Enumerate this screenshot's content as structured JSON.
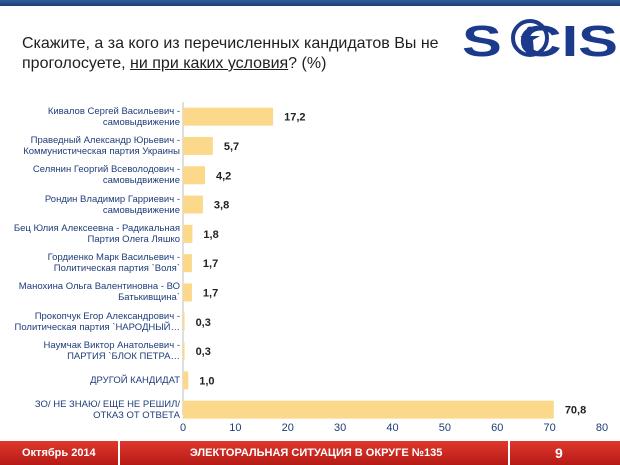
{
  "header": {
    "title_part1": "Скажите, а за кого из перечисленных кандидатов Вы не проголосуете, ",
    "title_emphasis": "ни при каких условия",
    "title_part2": "? (%)",
    "logo_text": "S CIS"
  },
  "chart_data": {
    "type": "bar",
    "orientation": "horizontal",
    "title": "Скажите, а за кого из перечисленных кандидатов Вы не проголосуете, ни при каких условия? (%)",
    "categories": [
      "Кивалов Сергей Васильевич -\nсамовыдвижение",
      "Праведный Александр Юрьевич -\nКоммунистическая партия Украины",
      "Селянин Георгий Всеволодович -\nсамовыдвижение",
      "Рондин Владимир Гарриевич -\nсамовыдвижение",
      "Бец Юлия Алексеевна - Радикальная\nПартия Олега Ляшко",
      "Гордиенко Марк Васильевич -\nПолитическая партия `Воля`",
      "Манохина Ольга Валентиновна - ВО\nБатькивщина`",
      "Прокопчук Егор Александрович -\nПолитическая партия `НАРОДНЫЙ…",
      "Наумчак Виктор Анатольевич -\nПАРТИЯ `БЛОК ПЕТРА…",
      "ДРУГОЙ КАНДИДАТ",
      "ЗО/ НЕ ЗНАЮ/ ЕЩЕ НЕ РЕШИЛ/\nОТКАЗ ОТ ОТВЕТА"
    ],
    "values": [
      17.2,
      5.7,
      4.2,
      3.8,
      1.8,
      1.7,
      1.7,
      0.3,
      0.3,
      1.0,
      70.8
    ],
    "value_labels": [
      "17,2",
      "5,7",
      "4,2",
      "3,8",
      "1,8",
      "1,7",
      "1,7",
      "0,3",
      "0,3",
      "1,0",
      "70,8"
    ],
    "xlim": [
      0,
      80
    ],
    "xticks": [
      0,
      10,
      20,
      30,
      40,
      50,
      60,
      70,
      80
    ],
    "xlabel": "",
    "ylabel": "",
    "bar_color": "#fcd98a"
  },
  "footer": {
    "date": "Октябрь 2014",
    "event": "ЭЛЕКТОРАЛЬНАЯ СИТУАЦИЯ В ОКРУГЕ №135",
    "page": "9"
  },
  "colors": {
    "footer_red": "#c8241d",
    "logo_blue": "#1b3a8c",
    "label_blue": "#1f3d7a"
  }
}
